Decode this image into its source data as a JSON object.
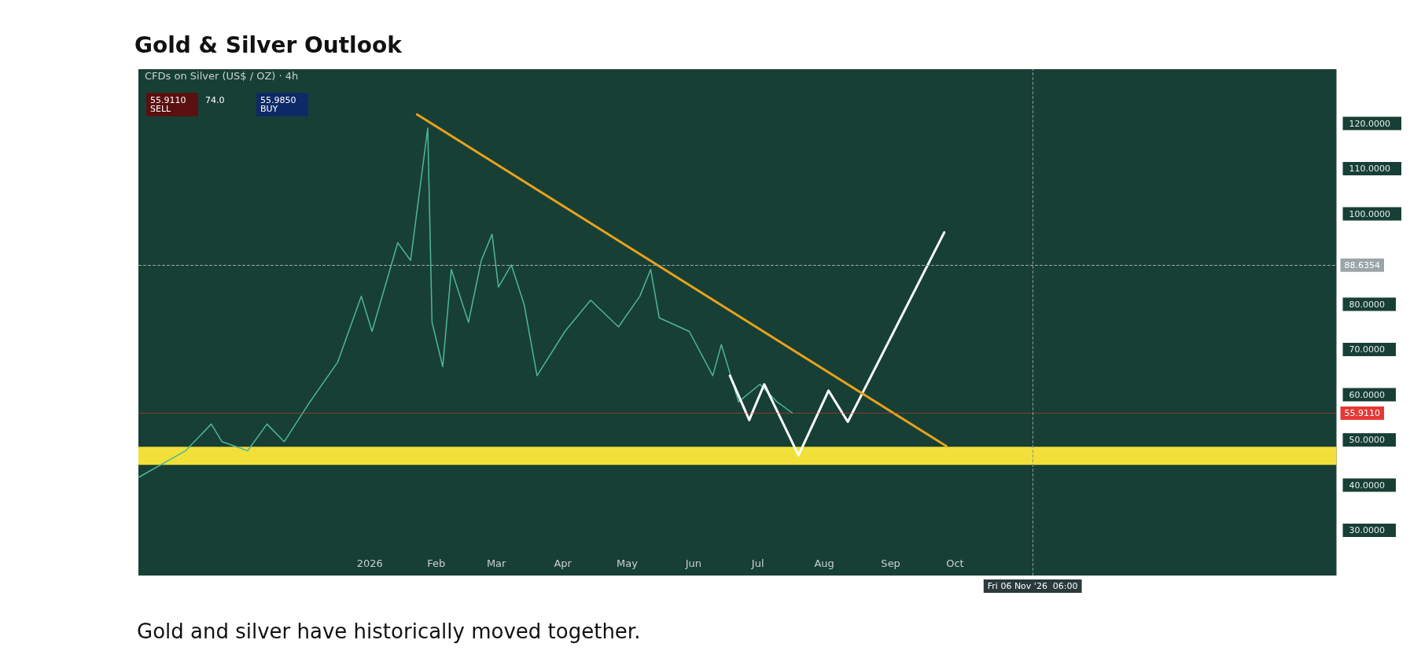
{
  "chart_data": {
    "type": "line",
    "title": "Gold & Silver Outlook",
    "subtitle": "CFDs on Silver (US$ / OZ) · 4h",
    "annotations": [
      "55.9110 SELL",
      "74.0",
      "55.9850 BUY",
      "Gold and silver have historically moved together."
    ],
    "xlim": [
      "2025-09-15",
      "2027-03-28"
    ],
    "xticks": [
      {
        "value": "2026-01-01",
        "label": "2026"
      },
      {
        "value": "2026-02-01",
        "label": "Feb"
      },
      {
        "value": "2026-03-01",
        "label": "Mar"
      },
      {
        "value": "2026-04-01",
        "label": "Apr"
      },
      {
        "value": "2026-05-01",
        "label": "May"
      },
      {
        "value": "2026-06-01",
        "label": "Jun"
      },
      {
        "value": "2026-07-01",
        "label": "Jul"
      },
      {
        "value": "2026-08-01",
        "label": "Aug"
      },
      {
        "value": "2026-09-01",
        "label": "Sep"
      },
      {
        "value": "2026-10-01",
        "label": "Oct"
      }
    ],
    "ylim": [
      20,
      132
    ],
    "yticks": [
      {
        "value": 30,
        "label": "30.0000"
      },
      {
        "value": 40,
        "label": "40.0000"
      },
      {
        "value": 50,
        "label": "50.0000"
      },
      {
        "value": 60,
        "label": "60.0000"
      },
      {
        "value": 70,
        "label": "70.0000"
      },
      {
        "value": 80,
        "label": "80.0000"
      },
      {
        "value": 100,
        "label": "100.0000"
      },
      {
        "value": 110,
        "label": "110.0000"
      },
      {
        "value": 120,
        "label": "120.0000"
      }
    ],
    "series": [
      {
        "color": "#4fb59a",
        "x": [
          "2025-09-15",
          "2025-10-07",
          "2025-10-19",
          "2025-10-24",
          "2025-11-05",
          "2025-11-14",
          "2025-11-22",
          "2025-12-04",
          "2025-12-17",
          "2025-12-28",
          "2026-01-02",
          "2026-01-14",
          "2026-01-20",
          "2026-01-28",
          "2026-01-30",
          "2026-02-04",
          "2026-02-08",
          "2026-02-16",
          "2026-02-22",
          "2026-02-27",
          "2026-03-02",
          "2026-03-08",
          "2026-03-14",
          "2026-03-20",
          "2026-04-02",
          "2026-04-14",
          "2026-04-27",
          "2026-05-07",
          "2026-05-12",
          "2026-05-16",
          "2026-05-30",
          "2026-06-10",
          "2026-06-14",
          "2026-06-22",
          "2026-07-02",
          "2026-07-10",
          "2026-07-17"
        ],
        "values": [
          41.7,
          47.6,
          53.5,
          49.6,
          47.6,
          53.5,
          49.6,
          58.4,
          67.2,
          81.8,
          74,
          93.6,
          89.7,
          119,
          76,
          66.2,
          87.7,
          76,
          89.7,
          95.5,
          83.8,
          88.7,
          79.9,
          64.2,
          74,
          80.9,
          75,
          81.8,
          87.7,
          77,
          74,
          64.2,
          71.1,
          58.4,
          62.3,
          58.4,
          56
        ]
      },
      {
        "color": "#ffffff",
        "x": [
          "2026-06-18",
          "2026-06-27",
          "2026-07-04",
          "2026-07-20",
          "2026-08-03",
          "2026-08-12",
          "2026-09-26"
        ],
        "values": [
          64.2,
          54.4,
          62.3,
          46.6,
          60.9,
          54,
          95.9
        ]
      },
      {
        "color": "#e8a21c",
        "x": [
          "2026-01-23",
          "2026-09-27"
        ],
        "values": [
          122,
          48.6
        ]
      }
    ],
    "ref_lines": [
      {
        "axis": "y",
        "value": 88.6354,
        "label": "88.6354",
        "color": "#9aa5a8",
        "line_style": "dashed"
      },
      {
        "axis": "y",
        "value": 55.911,
        "label": "55.9110",
        "color": "#e53935",
        "line_style": "dotted"
      },
      {
        "axis": "x",
        "value": "2026-11-06T06:00",
        "label": "Fri 06 Nov '26  06:00",
        "color": "#8a9497",
        "line_style": "dashed"
      }
    ],
    "bands": [
      {
        "axis": "y",
        "from": 44.5,
        "to": 48.5,
        "color": "#f2e03a"
      }
    ]
  }
}
